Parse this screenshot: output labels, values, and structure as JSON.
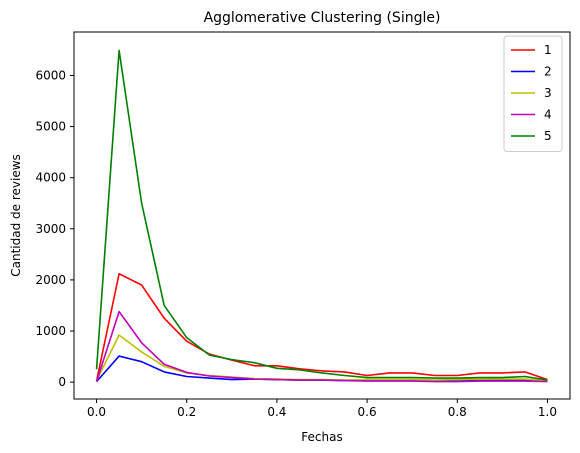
{
  "chart_data": {
    "type": "line",
    "title": "Agglomerative Clustering (Single)",
    "xlabel": "Fechas",
    "ylabel": "Cantidad de reviews",
    "xlim": [
      -0.05,
      1.05
    ],
    "ylim": [
      -330,
      6850
    ],
    "xticks": [
      0.0,
      0.2,
      0.4,
      0.6,
      0.8,
      1.0
    ],
    "xtick_labels": [
      "0.0",
      "0.2",
      "0.4",
      "0.6",
      "0.8",
      "1.0"
    ],
    "yticks": [
      0,
      1000,
      2000,
      3000,
      4000,
      5000,
      6000
    ],
    "ytick_labels": [
      "0",
      "1000",
      "2000",
      "3000",
      "4000",
      "5000",
      "6000"
    ],
    "grid": false,
    "legend_position": "top-right",
    "x": [
      0.0,
      0.05,
      0.1,
      0.15,
      0.2,
      0.25,
      0.3,
      0.35,
      0.4,
      0.45,
      0.5,
      0.55,
      0.6,
      0.65,
      0.7,
      0.75,
      0.8,
      0.85,
      0.9,
      0.95,
      1.0
    ],
    "series": [
      {
        "name": "1",
        "color": "#ff0000",
        "values": [
          20,
          2120,
          1900,
          1250,
          800,
          550,
          430,
          320,
          320,
          260,
          220,
          200,
          130,
          180,
          180,
          130,
          130,
          180,
          180,
          200,
          50
        ]
      },
      {
        "name": "2",
        "color": "#0000ff",
        "values": [
          10,
          510,
          400,
          200,
          110,
          80,
          50,
          60,
          50,
          40,
          40,
          30,
          30,
          30,
          30,
          20,
          20,
          30,
          40,
          40,
          20
        ]
      },
      {
        "name": "3",
        "color": "#bfbf00",
        "values": [
          30,
          920,
          590,
          310,
          180,
          130,
          100,
          70,
          60,
          50,
          50,
          40,
          50,
          50,
          50,
          40,
          50,
          60,
          60,
          60,
          30
        ]
      },
      {
        "name": "4",
        "color": "#bf00bf",
        "values": [
          10,
          1380,
          770,
          350,
          190,
          120,
          90,
          60,
          50,
          40,
          40,
          30,
          20,
          20,
          20,
          10,
          10,
          20,
          20,
          20,
          10
        ]
      },
      {
        "name": "5",
        "color": "#008000",
        "values": [
          250,
          6490,
          3500,
          1500,
          870,
          530,
          440,
          380,
          270,
          240,
          180,
          130,
          90,
          90,
          90,
          80,
          80,
          90,
          90,
          110,
          40
        ]
      }
    ]
  }
}
